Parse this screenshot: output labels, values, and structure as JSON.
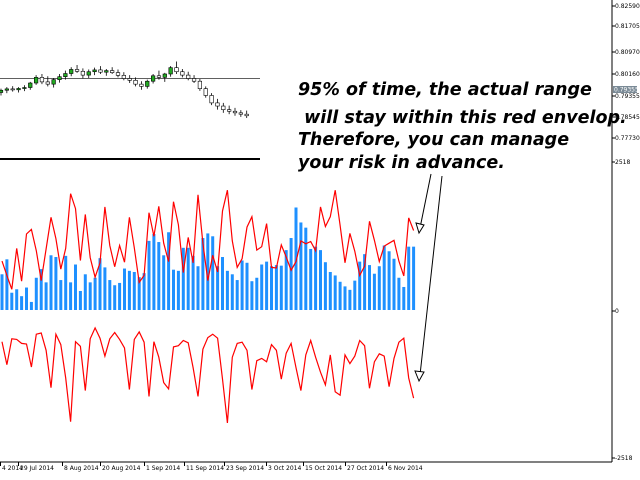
{
  "chart_data": [
    {
      "type": "candlestick",
      "title": "",
      "yaxis_ticks": [
        "0.82590",
        "0.81705",
        "0.80970",
        "0.80160",
        "0.79355",
        "0.78545",
        "0.77730"
      ],
      "price_tag": "0.79355",
      "horizontal_line": "0.80160",
      "ylim": [
        0.7711,
        0.8291
      ],
      "candles": [
        {
          "o": 0.7908,
          "h": 0.7925,
          "l": 0.7895,
          "c": 0.7918
        },
        {
          "o": 0.7918,
          "h": 0.7932,
          "l": 0.7905,
          "c": 0.7924
        },
        {
          "o": 0.7924,
          "h": 0.7936,
          "l": 0.7912,
          "c": 0.792
        },
        {
          "o": 0.792,
          "h": 0.7932,
          "l": 0.7908,
          "c": 0.7926
        },
        {
          "o": 0.7926,
          "h": 0.794,
          "l": 0.7914,
          "c": 0.793
        },
        {
          "o": 0.793,
          "h": 0.7955,
          "l": 0.792,
          "c": 0.795
        },
        {
          "o": 0.795,
          "h": 0.7985,
          "l": 0.7942,
          "c": 0.7975
        },
        {
          "o": 0.7975,
          "h": 0.799,
          "l": 0.7945,
          "c": 0.7955
        },
        {
          "o": 0.7955,
          "h": 0.798,
          "l": 0.7935,
          "c": 0.7945
        },
        {
          "o": 0.7945,
          "h": 0.7972,
          "l": 0.793,
          "c": 0.7965
        },
        {
          "o": 0.7965,
          "h": 0.799,
          "l": 0.7952,
          "c": 0.7978
        },
        {
          "o": 0.7978,
          "h": 0.8005,
          "l": 0.7965,
          "c": 0.7992
        },
        {
          "o": 0.7992,
          "h": 0.802,
          "l": 0.798,
          "c": 0.801
        },
        {
          "o": 0.801,
          "h": 0.803,
          "l": 0.7995,
          "c": 0.8002
        },
        {
          "o": 0.8002,
          "h": 0.8015,
          "l": 0.797,
          "c": 0.7985
        },
        {
          "o": 0.7985,
          "h": 0.801,
          "l": 0.7972,
          "c": 0.8
        },
        {
          "o": 0.8,
          "h": 0.8018,
          "l": 0.7985,
          "c": 0.8008
        },
        {
          "o": 0.8008,
          "h": 0.8025,
          "l": 0.799,
          "c": 0.7998
        },
        {
          "o": 0.7998,
          "h": 0.8012,
          "l": 0.7982,
          "c": 0.8005
        },
        {
          "o": 0.8005,
          "h": 0.802,
          "l": 0.799,
          "c": 0.7996
        },
        {
          "o": 0.7996,
          "h": 0.801,
          "l": 0.7975,
          "c": 0.7984
        },
        {
          "o": 0.7984,
          "h": 0.7998,
          "l": 0.7962,
          "c": 0.797
        },
        {
          "o": 0.797,
          "h": 0.7985,
          "l": 0.795,
          "c": 0.7962
        },
        {
          "o": 0.7962,
          "h": 0.7975,
          "l": 0.7935,
          "c": 0.7945
        },
        {
          "o": 0.7945,
          "h": 0.7958,
          "l": 0.792,
          "c": 0.7935
        },
        {
          "o": 0.7935,
          "h": 0.7965,
          "l": 0.7925,
          "c": 0.7958
        },
        {
          "o": 0.7958,
          "h": 0.799,
          "l": 0.7948,
          "c": 0.7982
        },
        {
          "o": 0.7982,
          "h": 0.8005,
          "l": 0.7965,
          "c": 0.7975
        },
        {
          "o": 0.7975,
          "h": 0.7995,
          "l": 0.7955,
          "c": 0.799
        },
        {
          "o": 0.799,
          "h": 0.8025,
          "l": 0.7978,
          "c": 0.8018
        },
        {
          "o": 0.8018,
          "h": 0.8045,
          "l": 0.799,
          "c": 0.8
        },
        {
          "o": 0.8,
          "h": 0.8012,
          "l": 0.7975,
          "c": 0.7985
        },
        {
          "o": 0.7985,
          "h": 0.8,
          "l": 0.7962,
          "c": 0.797
        },
        {
          "o": 0.797,
          "h": 0.7985,
          "l": 0.795,
          "c": 0.7958
        },
        {
          "o": 0.7958,
          "h": 0.7968,
          "l": 0.7915,
          "c": 0.7925
        },
        {
          "o": 0.7925,
          "h": 0.7935,
          "l": 0.7885,
          "c": 0.7895
        },
        {
          "o": 0.7895,
          "h": 0.7905,
          "l": 0.7852,
          "c": 0.7862
        },
        {
          "o": 0.7862,
          "h": 0.788,
          "l": 0.7832,
          "c": 0.7848
        },
        {
          "o": 0.7848,
          "h": 0.7862,
          "l": 0.7818,
          "c": 0.7832
        },
        {
          "o": 0.7832,
          "h": 0.785,
          "l": 0.7812,
          "c": 0.7825
        },
        {
          "o": 0.7825,
          "h": 0.784,
          "l": 0.7805,
          "c": 0.7818
        },
        {
          "o": 0.7818,
          "h": 0.783,
          "l": 0.78,
          "c": 0.7812
        },
        {
          "o": 0.7812,
          "h": 0.7828,
          "l": 0.7795,
          "c": 0.7805
        }
      ]
    },
    {
      "type": "bar",
      "title": "",
      "yaxis_ticks": [
        "2518",
        "0",
        "-2518"
      ],
      "ylim": [
        -2518,
        2518
      ],
      "series": [
        {
          "color": "#1e90ff",
          "values": [
            620,
            880,
            300,
            360,
            240,
            390,
            140,
            560,
            710,
            480,
            950,
            920,
            520,
            940,
            480,
            790,
            330,
            620,
            480,
            560,
            900,
            740,
            520,
            430,
            470,
            720,
            680,
            660,
            570,
            640,
            1200,
            1320,
            1180,
            950,
            1350,
            700,
            680,
            1080,
            1080,
            940,
            760,
            1250,
            1330,
            1280,
            760,
            920,
            680,
            620,
            520,
            860,
            820,
            500,
            560,
            790,
            840,
            760,
            780,
            770,
            1040,
            1250,
            1780,
            1520,
            1430,
            1060,
            1100,
            1040,
            830,
            660,
            600,
            490,
            410,
            350,
            510,
            840,
            970,
            780,
            630,
            760,
            1120,
            1020,
            890,
            560,
            400,
            1100,
            1100
          ]
        }
      ]
    },
    {
      "type": "line",
      "title": "",
      "series": [
        {
          "color": "#ff0000",
          "values": [
            850,
            600,
            360,
            1070,
            500,
            1320,
            1400,
            1030,
            510,
            1060,
            1610,
            1240,
            710,
            1070,
            2020,
            1760,
            860,
            1660,
            910,
            570,
            820,
            1790,
            1120,
            750,
            1120,
            830,
            1610,
            1080,
            480,
            600,
            1690,
            1280,
            1800,
            1160,
            840,
            1880,
            1480,
            650,
            1260,
            820,
            2000,
            1160,
            510,
            950,
            660,
            1720,
            2080,
            1200,
            740,
            890,
            1440,
            1620,
            1040,
            1100,
            1500,
            740,
            730,
            1130,
            920,
            690,
            840,
            1200,
            1150,
            1190,
            1030,
            1790,
            1450,
            1620,
            2080,
            1470,
            820,
            1330,
            1020,
            600,
            760,
            1540,
            1210,
            840,
            1110,
            1160,
            1210,
            850,
            590,
            1600,
            1380
          ]
        },
        {
          "color": "#ff0000",
          "values": [
            -550,
            -950,
            -500,
            -510,
            -580,
            -590,
            -990,
            -420,
            -400,
            -700,
            -1350,
            -420,
            -600,
            -1180,
            -1940,
            -550,
            -630,
            -1400,
            -500,
            -310,
            -490,
            -800,
            -500,
            -390,
            -510,
            -660,
            -1380,
            -510,
            -380,
            -560,
            -1500,
            -550,
            -820,
            -1260,
            -1370,
            -640,
            -620,
            -530,
            -570,
            -1000,
            -1500,
            -680,
            -480,
            -420,
            -490,
            -1200,
            -1960,
            -820,
            -580,
            -560,
            -700,
            -1380,
            -880,
            -840,
            -900,
            -600,
            -700,
            -1200,
            -750,
            -580,
            -1000,
            -1400,
            -780,
            -530,
            -820,
            -1080,
            -1300,
            -780,
            -1420,
            -1480,
            -780,
            -930,
            -800,
            -530,
            -620,
            -1360,
            -900,
            -760,
            -800,
            -1330,
            -840,
            -560,
            -490,
            -1180,
            -1530
          ]
        }
      ]
    },
    {
      "type": "annotation",
      "text_lines": [
        "95% of time, the actual range",
        " will stay within this red envelop.",
        "Therefore, you can manage",
        "your risk in advance."
      ]
    },
    {
      "type": "x-axis",
      "tick_labels": [
        "4 2014",
        "29 Jul 2014",
        "8 Aug 2014",
        "20 Aug 2014",
        "1 Sep 2014",
        "11 Sep 2014",
        "23 Sep 2014",
        "3 Oct 2014",
        "15 Oct 2014",
        "27 Oct 2014",
        "6 Nov 2014"
      ]
    }
  ]
}
